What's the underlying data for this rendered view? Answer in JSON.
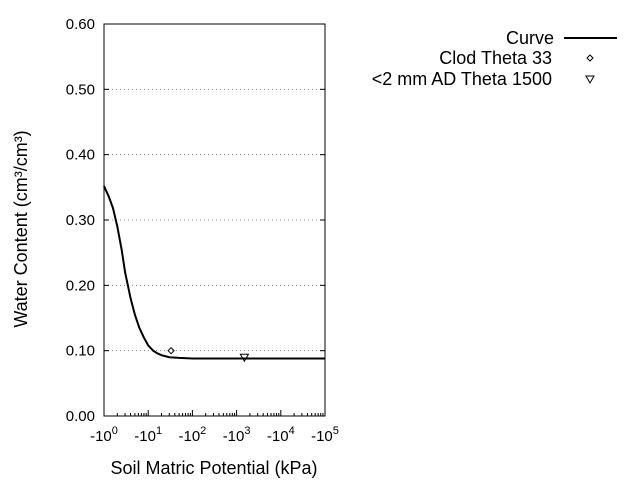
{
  "chart_data": {
    "type": "line",
    "xlabel": "Soil Matric Potential (kPa)",
    "ylabel": "Water Content (cm³/cm³)",
    "x_scale": "log",
    "xlim": [
      -1,
      -100000
    ],
    "ylim": [
      0,
      0.6
    ],
    "x_ticks": [
      {
        "value": -1,
        "base": "-10",
        "exp": "0"
      },
      {
        "value": -10,
        "base": "-10",
        "exp": "1"
      },
      {
        "value": -100,
        "base": "-10",
        "exp": "2"
      },
      {
        "value": -1000,
        "base": "-10",
        "exp": "3"
      },
      {
        "value": -10000,
        "base": "-10",
        "exp": "4"
      },
      {
        "value": -100000,
        "base": "-10",
        "exp": "5"
      }
    ],
    "y_ticks": [
      "0.00",
      "0.10",
      "0.20",
      "0.30",
      "0.40",
      "0.50",
      "0.60"
    ],
    "grid": "horizontal dotted",
    "legend_position": "top-right",
    "series": [
      {
        "name": "Curve",
        "kind": "line",
        "color": "#000000",
        "x": [
          -1,
          -1.3,
          -1.6,
          -2,
          -2.5,
          -3,
          -4,
          -5,
          -6.3,
          -8,
          -10,
          -13,
          -16,
          -20,
          -30,
          -50,
          -100,
          -1000,
          -10000,
          -100000
        ],
        "y": [
          0.352,
          0.335,
          0.318,
          0.29,
          0.255,
          0.22,
          0.18,
          0.155,
          0.135,
          0.12,
          0.108,
          0.1,
          0.096,
          0.093,
          0.09,
          0.089,
          0.088,
          0.088,
          0.088,
          0.088
        ]
      },
      {
        "name": "Clod Theta 33",
        "kind": "point",
        "marker": "diamond",
        "x": [
          -33
        ],
        "y": [
          0.1
        ]
      },
      {
        "name": "<2 mm AD Theta 1500",
        "kind": "point",
        "marker": "triangle-down",
        "x": [
          -1500
        ],
        "y": [
          0.09
        ]
      }
    ]
  }
}
